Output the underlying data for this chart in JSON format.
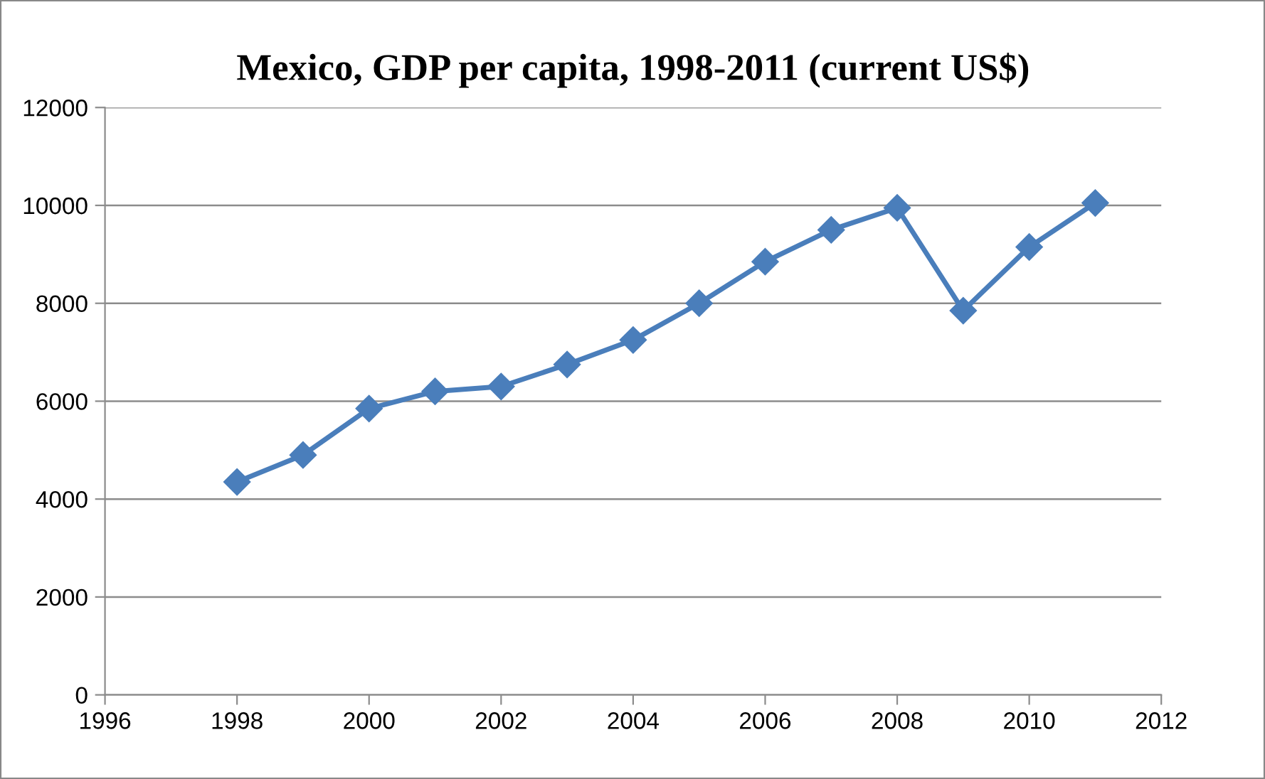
{
  "chart_data": {
    "type": "line",
    "title": "Mexico, GDP per capita, 1998-2011 (current US$)",
    "x": [
      1998,
      1999,
      2000,
      2001,
      2002,
      2003,
      2004,
      2005,
      2006,
      2007,
      2008,
      2009,
      2010,
      2011
    ],
    "series": [
      {
        "color": "#4a7ebb",
        "values": [
          4350,
          4900,
          5850,
          6200,
          6300,
          6750,
          7250,
          8000,
          8850,
          9500,
          9950,
          7850,
          9150,
          10050
        ]
      }
    ],
    "xlim": [
      1996,
      2012
    ],
    "xticks": [
      1996,
      1998,
      2000,
      2002,
      2004,
      2006,
      2008,
      2010,
      2012
    ],
    "ylim": [
      0,
      12000
    ],
    "yticks": [
      0,
      2000,
      4000,
      6000,
      8000,
      10000,
      12000
    ],
    "grid": "y",
    "legend": false,
    "marker": "diamond",
    "line_style": "solid"
  }
}
